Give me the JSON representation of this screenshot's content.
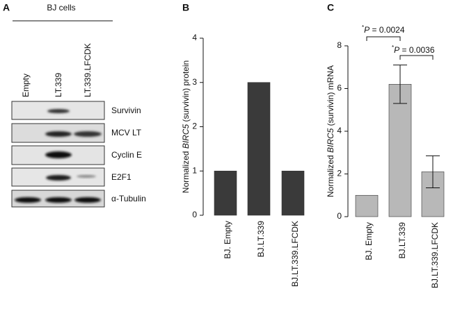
{
  "panel_a": {
    "label": "A",
    "title": "BJ cells",
    "lanes": [
      "Empty",
      "LT.339",
      "LT.339.LFCDK"
    ],
    "bands": [
      "Survivin",
      "MCV LT",
      "Cyclin E",
      "E2F1",
      "α-Tubulin"
    ]
  },
  "chart_data": [
    {
      "type": "bar",
      "panel": "B",
      "ylabel": [
        "Normalized ",
        "BIRC5",
        " (survivin) protein"
      ],
      "categories": [
        "BJ. Empty",
        "BJ.LT.339",
        "BJ.LT.339.LFCDK"
      ],
      "values": [
        1,
        3,
        1
      ],
      "color": "#3a3a3a",
      "ylim": [
        0,
        4
      ],
      "yticks": [
        0,
        1,
        2,
        3,
        4
      ]
    },
    {
      "type": "bar",
      "panel": "C",
      "ylabel": [
        "Normalized ",
        "BIRC5",
        " (survivin) mRNA"
      ],
      "categories": [
        "BJ. Empty",
        "BJ.LT.339",
        "BJ.LT.339.LFCDK"
      ],
      "values": [
        1,
        6.2,
        2.1
      ],
      "errors": [
        null,
        0.9,
        0.75
      ],
      "color": "#b8b8b8",
      "ylim": [
        0,
        8
      ],
      "yticks": [
        0,
        2,
        4,
        6,
        8
      ],
      "annotations": [
        [
          "*",
          "P",
          " = 0.0024"
        ],
        [
          "*",
          "P",
          " = 0.0036"
        ]
      ]
    }
  ]
}
